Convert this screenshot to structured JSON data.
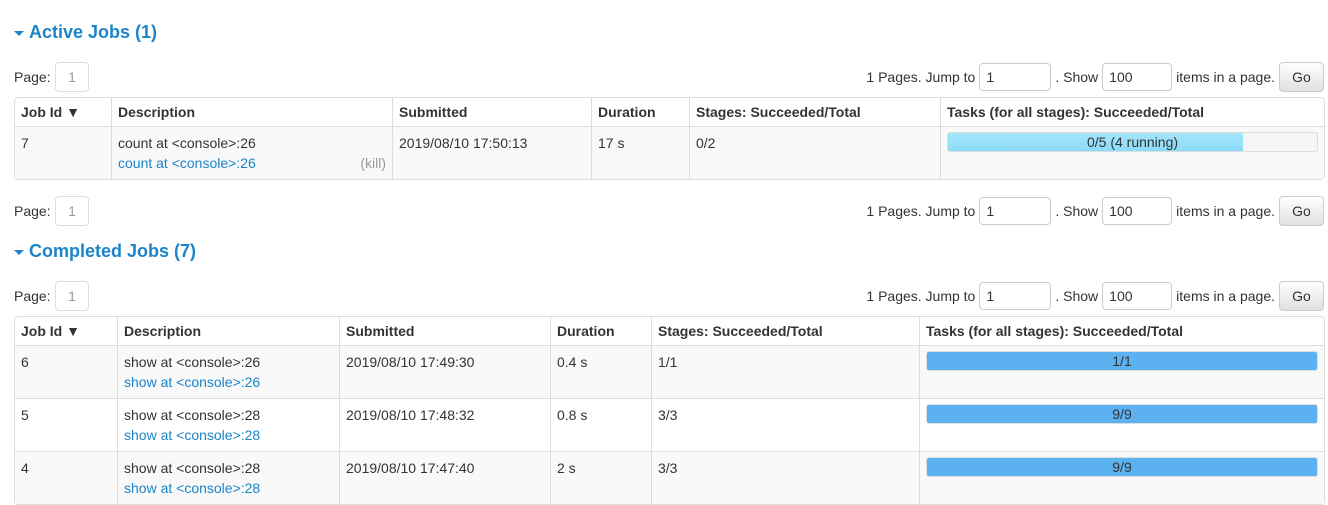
{
  "active": {
    "title": "Active Jobs (1)",
    "page_label": "Page:",
    "page": "1",
    "pages_text": "1 Pages. Jump to",
    "jump": "1",
    "show_text": ". Show",
    "show": "100",
    "items_text": "items in a page.",
    "go": "Go",
    "headers": [
      "Job Id ▼",
      "Description",
      "Submitted",
      "Duration",
      "Stages: Succeeded/Total",
      "Tasks (for all stages): Succeeded/Total"
    ],
    "rows": [
      {
        "id": "7",
        "desc": "count at <console>:26",
        "link": "count at <console>:26",
        "kill": "(kill)",
        "submitted": "2019/08/10 17:50:13",
        "duration": "17 s",
        "stages": "0/2",
        "tasks": "0/5 (4 running)",
        "succeeded": 0,
        "running": 4,
        "total": 5
      }
    ]
  },
  "completed": {
    "title": "Completed Jobs (7)",
    "page_label": "Page:",
    "page": "1",
    "pages_text": "1 Pages. Jump to",
    "jump": "1",
    "show_text": ". Show",
    "show": "100",
    "items_text": "items in a page.",
    "go": "Go",
    "headers": [
      "Job Id ▼",
      "Description",
      "Submitted",
      "Duration",
      "Stages: Succeeded/Total",
      "Tasks (for all stages): Succeeded/Total"
    ],
    "rows": [
      {
        "id": "6",
        "desc": "show at <console>:26",
        "link": "show at <console>:26",
        "submitted": "2019/08/10 17:49:30",
        "duration": "0.4 s",
        "stages": "1/1",
        "tasks": "1/1",
        "succeeded": 1,
        "running": 0,
        "total": 1
      },
      {
        "id": "5",
        "desc": "show at <console>:28",
        "link": "show at <console>:28",
        "submitted": "2019/08/10 17:48:32",
        "duration": "0.8 s",
        "stages": "3/3",
        "tasks": "9/9",
        "succeeded": 9,
        "running": 0,
        "total": 9
      },
      {
        "id": "4",
        "desc": "show at <console>:28",
        "link": "show at <console>:28",
        "submitted": "2019/08/10 17:47:40",
        "duration": "2 s",
        "stages": "3/3",
        "tasks": "9/9",
        "succeeded": 9,
        "running": 0,
        "total": 9
      }
    ]
  },
  "bottom_pager": {
    "page_label": "Page:",
    "page": "1",
    "pages_text": "1 Pages. Jump to",
    "jump": "1",
    "show_text": ". Show",
    "show": "100",
    "items_text": "items in a page.",
    "go": "Go"
  },
  "colors": {
    "accent": "#1a85c8",
    "succeeded_bar": "#5cb2f0",
    "running_bar": "#8cdcf8"
  }
}
